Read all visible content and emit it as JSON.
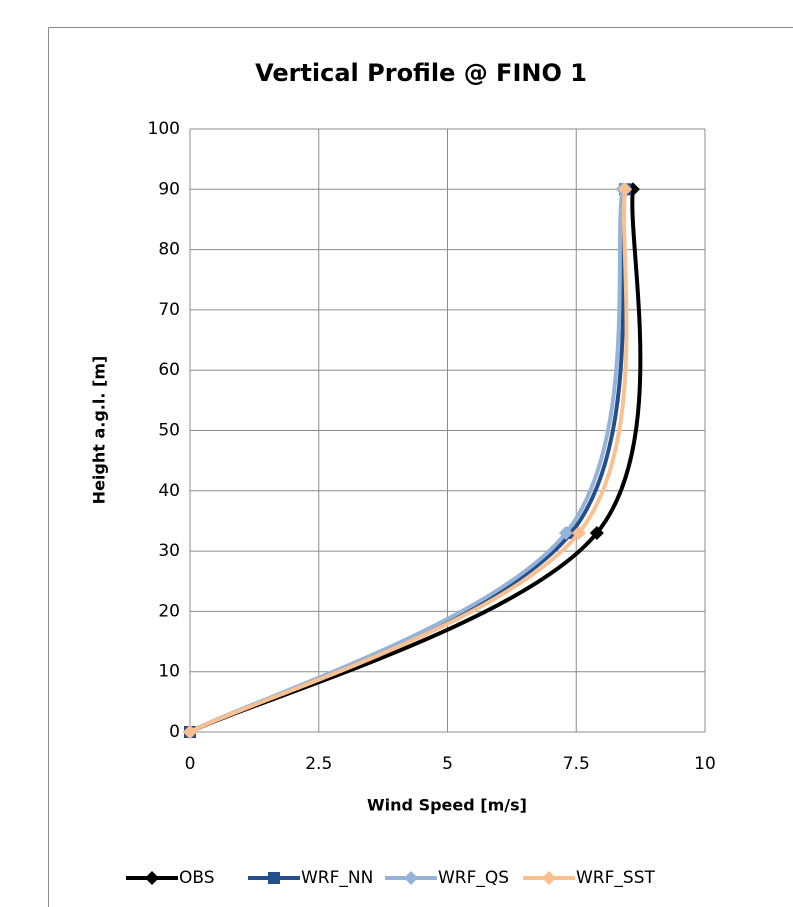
{
  "chart_data": {
    "type": "scatter-smooth",
    "title": "Vertical Profile @ FINO 1",
    "x_label": "Wind Speed [m/s]",
    "y_label": "Height a.g.l. [m]",
    "xlim": [
      0,
      10
    ],
    "xticks": [
      0,
      2.5,
      5,
      7.5,
      10
    ],
    "ylim": [
      0,
      100
    ],
    "yticks": [
      0,
      10,
      20,
      30,
      40,
      50,
      60,
      70,
      80,
      90,
      100
    ],
    "grid": true,
    "legend": "bottom",
    "series": [
      {
        "name": "OBS",
        "color": "#000000",
        "marker": "diamond",
        "x": [
          0,
          7.9,
          8.6
        ],
        "values": [
          0,
          33,
          90
        ]
      },
      {
        "name": "WRF_NN",
        "color": "#254f8a",
        "marker": "square",
        "x": [
          0,
          7.4,
          8.45
        ],
        "values": [
          0,
          33,
          90
        ]
      },
      {
        "name": "WRF_QS",
        "color": "#95b3d7",
        "marker": "diamond",
        "x": [
          0,
          7.3,
          8.4
        ],
        "values": [
          0,
          33,
          90
        ]
      },
      {
        "name": "WRF_SST",
        "color": "#fac090",
        "marker": "diamond",
        "x": [
          0,
          7.55,
          8.45
        ],
        "values": [
          0,
          33,
          90
        ]
      }
    ]
  }
}
